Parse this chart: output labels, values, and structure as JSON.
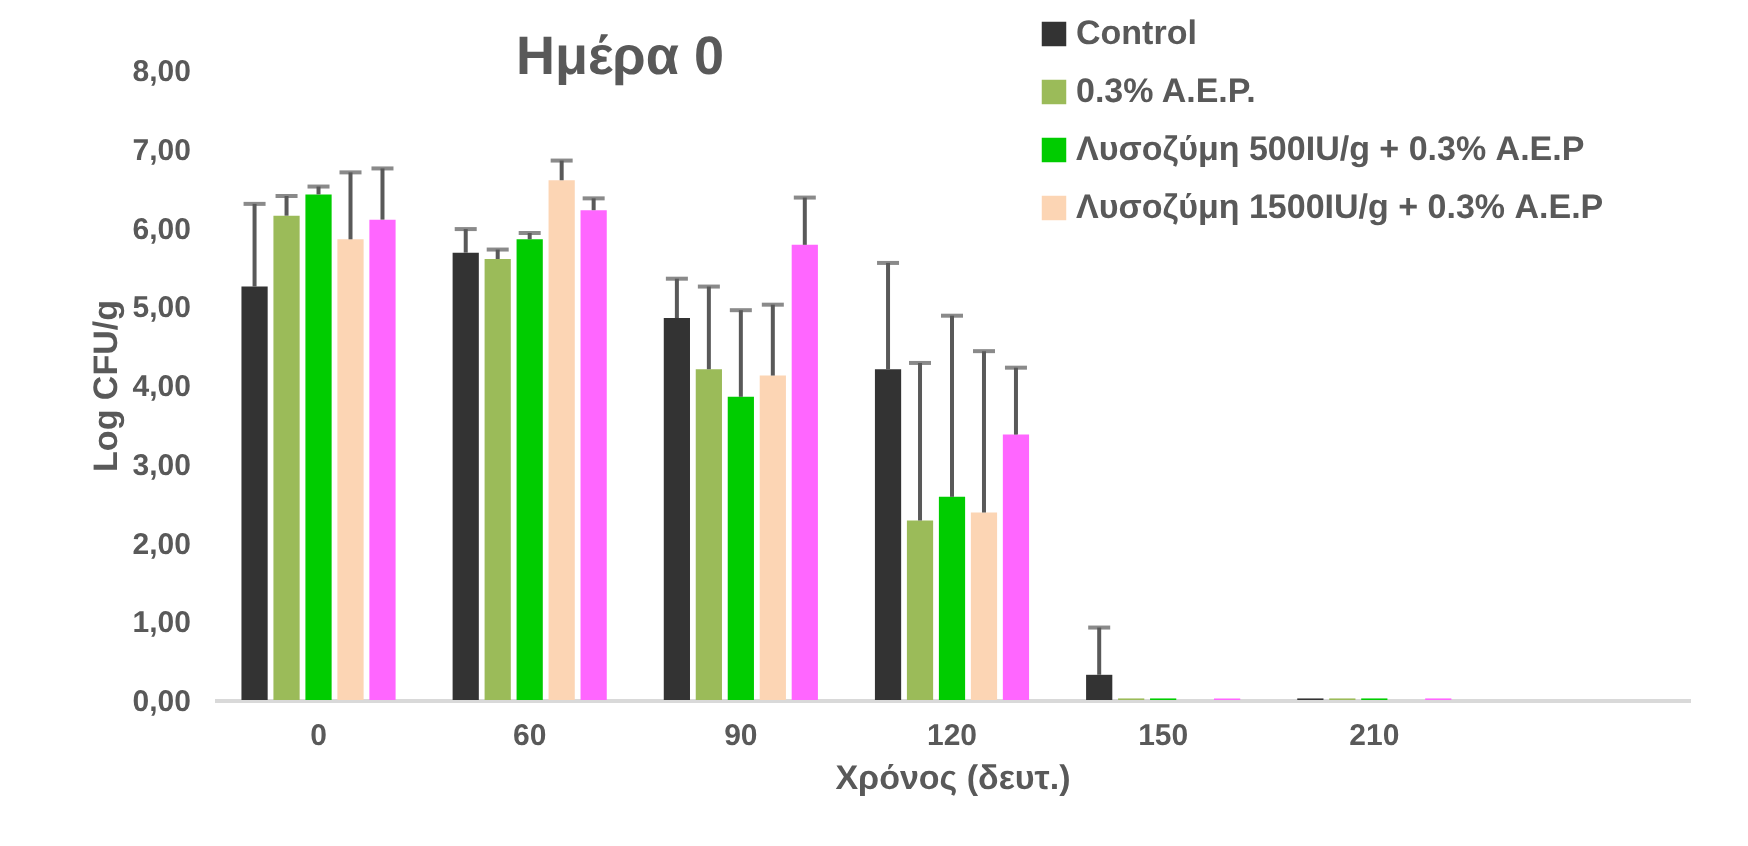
{
  "chart_data": {
    "type": "bar",
    "title": "Ημέρα 0",
    "xlabel": "Χρόνος (δευτ.)",
    "ylabel": "Log CFU/g",
    "categories": [
      "0",
      "60",
      "90",
      "120",
      "150",
      "210",
      null
    ],
    "series": [
      {
        "name": "Control",
        "color": "#333333",
        "values": [
          5.25,
          5.68,
          4.85,
          4.2,
          0.32,
          0.02,
          null
        ],
        "errors": [
          1.05,
          0.3,
          0.5,
          1.35,
          0.6,
          null,
          null
        ]
      },
      {
        "name": "0.3% Α.Ε.Ρ.",
        "color": "#9bbb59",
        "values": [
          6.15,
          5.6,
          4.2,
          2.28,
          0.02,
          0.02,
          null
        ],
        "errors": [
          0.25,
          0.12,
          1.05,
          2.0,
          null,
          null,
          null
        ]
      },
      {
        "name": "Λυσοζύμη 500IU/g + 0.3% Α.Ε.Ρ",
        "color": "#00cc00",
        "values": [
          6.42,
          5.85,
          3.85,
          2.58,
          0.02,
          0.02,
          null
        ],
        "errors": [
          0.1,
          0.08,
          1.1,
          2.3,
          null,
          null,
          null
        ]
      },
      {
        "name": "Λυσοζύμη 1500IU/g + 0.3% Α.Ε.Ρ",
        "color": "#fcd5b4",
        "values": [
          5.85,
          6.6,
          4.12,
          2.38,
          null,
          null,
          null
        ],
        "errors": [
          0.85,
          0.25,
          0.9,
          2.05,
          null,
          null,
          null
        ]
      },
      {
        "color": "#ff66ff",
        "values": [
          6.1,
          6.22,
          5.78,
          3.37,
          0.02,
          0.02,
          null
        ],
        "errors": [
          0.65,
          0.15,
          0.6,
          0.85,
          null,
          null,
          null
        ]
      }
    ],
    "ylim": [
      0,
      8
    ],
    "yticks": [
      {
        "value": 0,
        "label": "0,00"
      },
      {
        "value": 1,
        "label": "1,00"
      },
      {
        "value": 2,
        "label": "2,00"
      },
      {
        "value": 3,
        "label": "3,00"
      },
      {
        "value": 4,
        "label": "4,00"
      },
      {
        "value": 5,
        "label": "5,00"
      },
      {
        "value": 6,
        "label": "6,00"
      },
      {
        "value": 7,
        "label": "7,00"
      },
      {
        "value": 8,
        "label": "8,00"
      }
    ],
    "grid": false,
    "legend": "top right"
  }
}
